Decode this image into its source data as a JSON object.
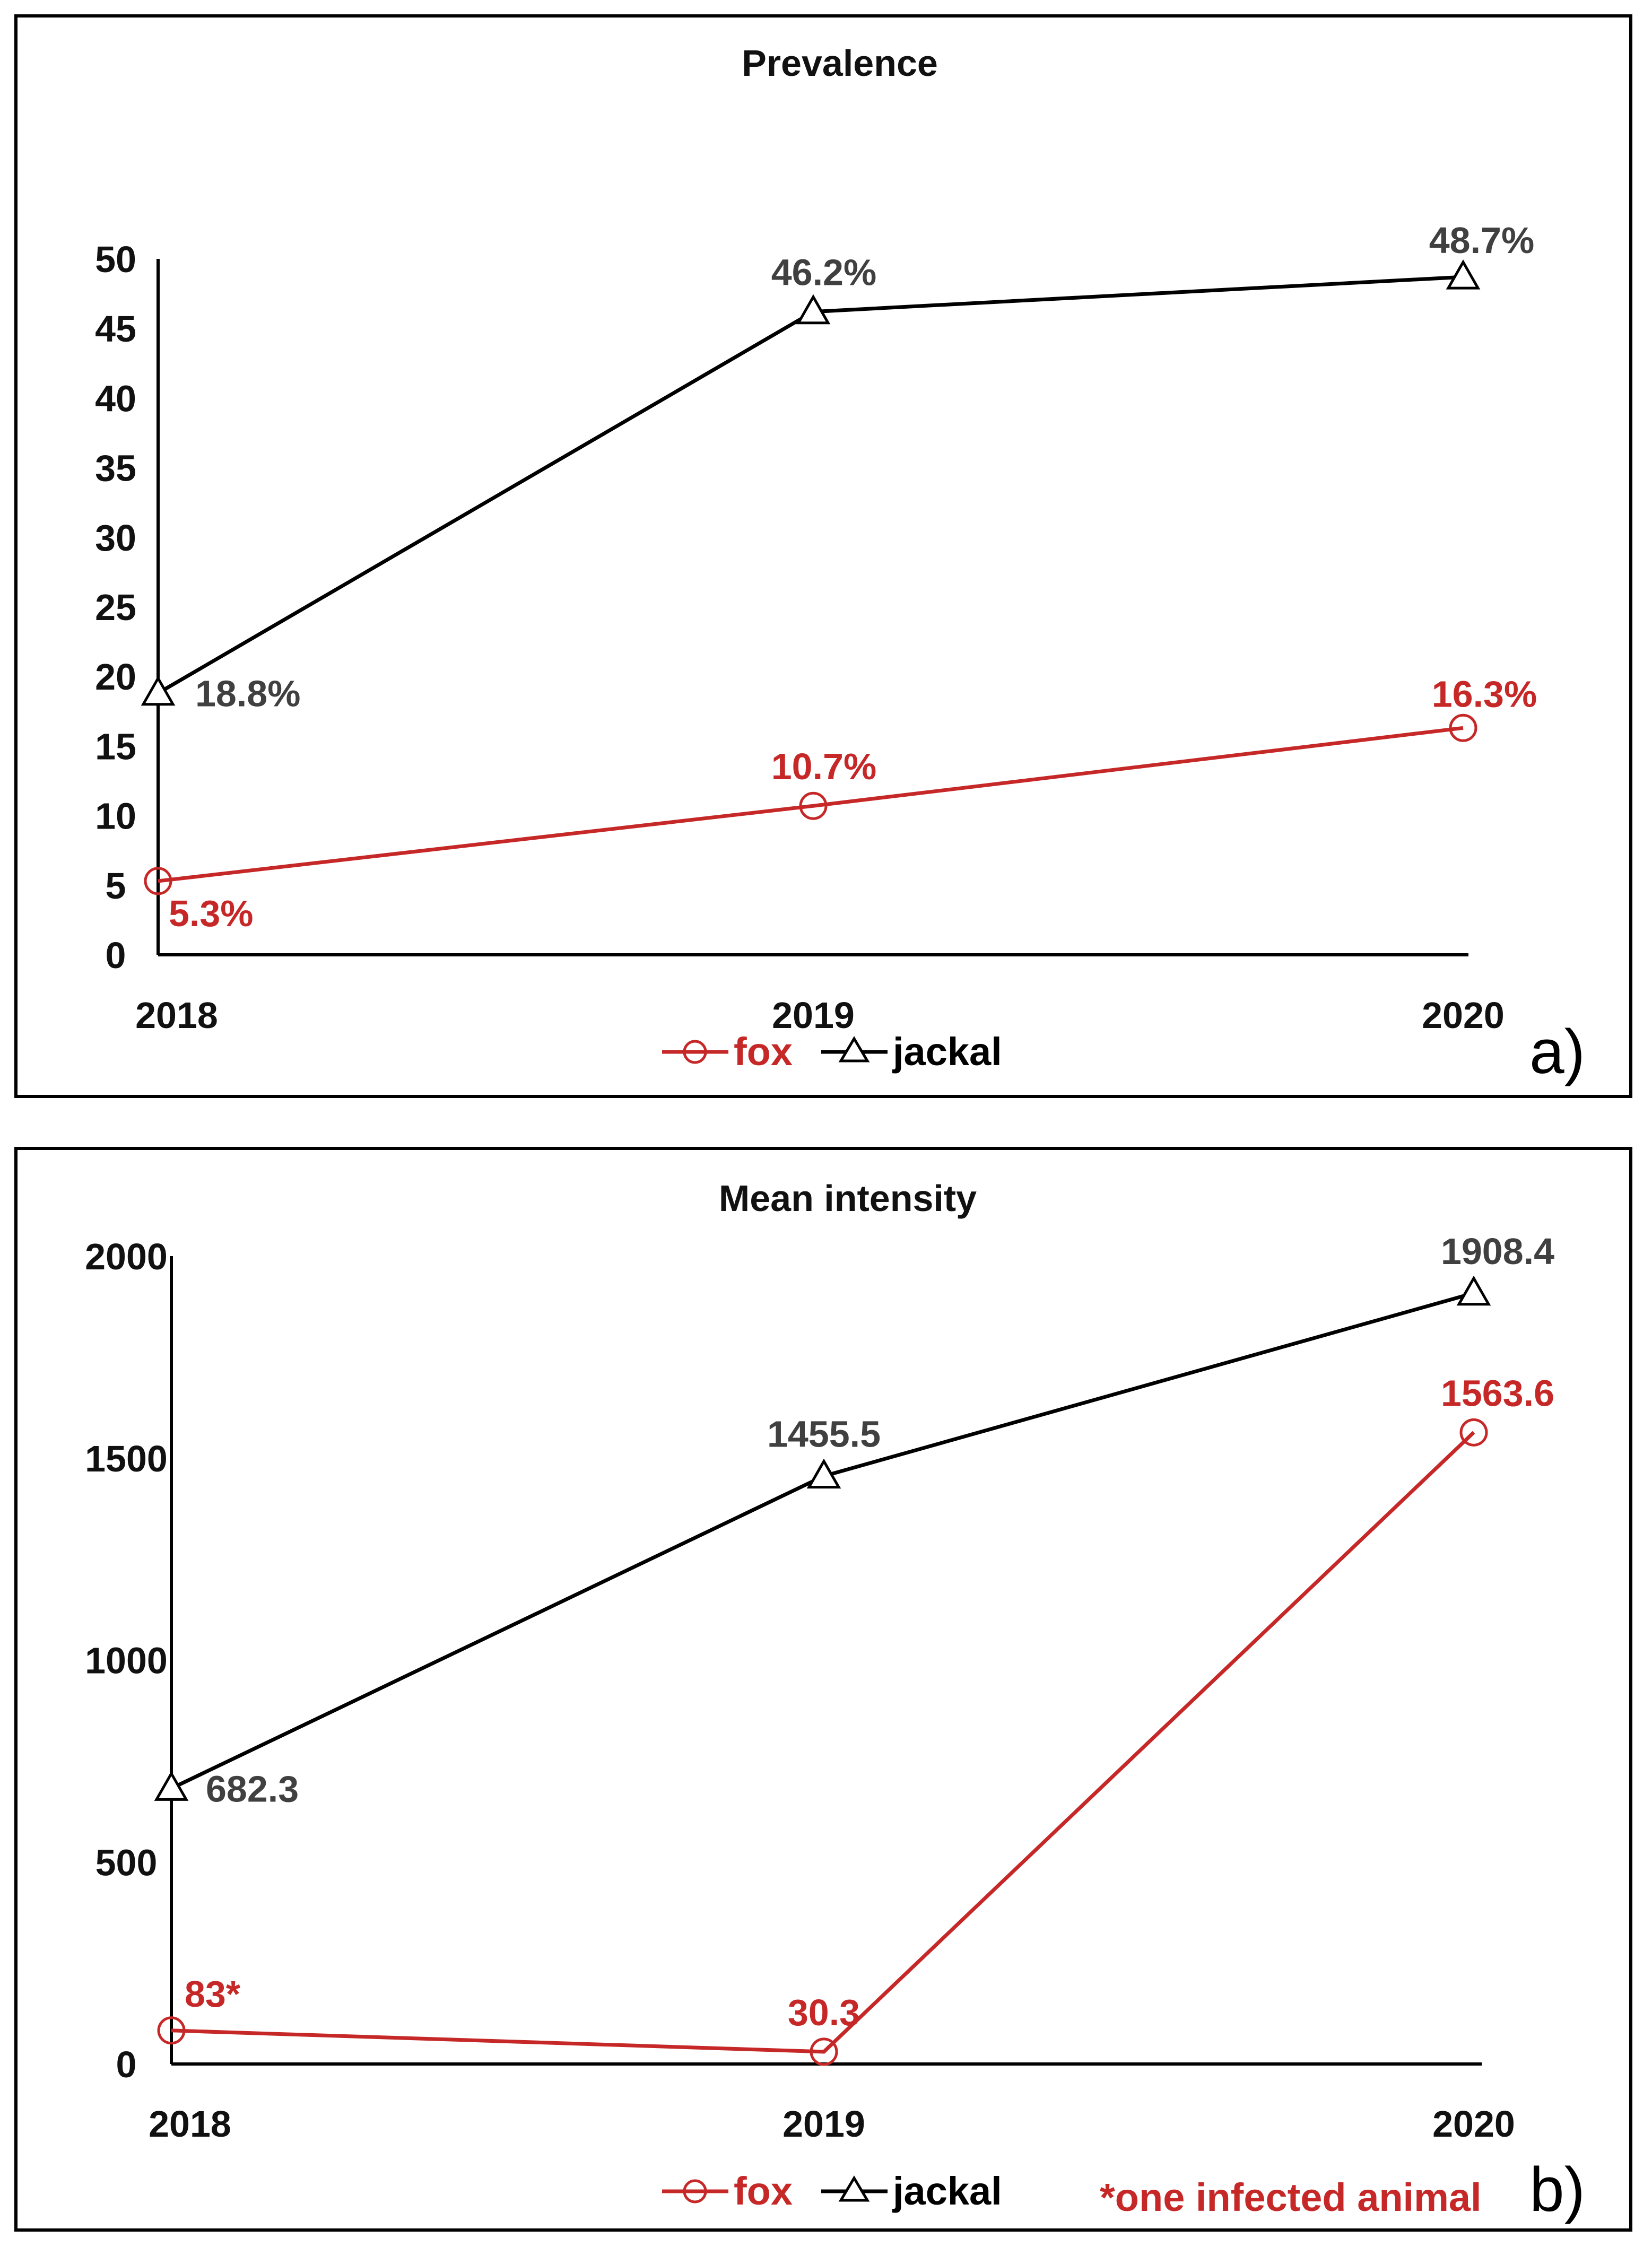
{
  "chart_data": [
    {
      "type": "line",
      "title": "Prevalence",
      "panel_label": "a)",
      "categories": [
        "2018",
        "2019",
        "2020"
      ],
      "ylim": [
        0,
        50
      ],
      "yticks": [
        "0",
        "5",
        "10",
        "15",
        "20",
        "25",
        "30",
        "35",
        "40",
        "45",
        "50"
      ],
      "series": [
        {
          "name": "fox",
          "color": "#c62828",
          "marker": "circle",
          "values": [
            5.3,
            10.7,
            16.3
          ],
          "labels": [
            "5.3%",
            "10.7%",
            "16.3%"
          ]
        },
        {
          "name": "jackal",
          "color": "#000000",
          "label_color": "#404040",
          "marker": "triangle",
          "values": [
            18.8,
            46.2,
            48.7
          ],
          "labels": [
            "18.8%",
            "46.2%",
            "48.7%"
          ]
        }
      ],
      "legend": {
        "fox": "fox",
        "jackal": "jackal"
      }
    },
    {
      "type": "line",
      "title": "Mean intensity",
      "panel_label": "b)",
      "categories": [
        "2018",
        "2019",
        "2020"
      ],
      "ylim": [
        0,
        2000
      ],
      "yticks": [
        "0",
        "500",
        "1000",
        "1500",
        "2000"
      ],
      "series": [
        {
          "name": "fox",
          "color": "#c62828",
          "marker": "circle",
          "values": [
            83,
            30.3,
            1563.6
          ],
          "labels": [
            "83*",
            "30.3",
            "1563.6"
          ]
        },
        {
          "name": "jackal",
          "color": "#000000",
          "label_color": "#404040",
          "marker": "triangle",
          "values": [
            682.3,
            1455.5,
            1908.4
          ],
          "labels": [
            "682.3",
            "1455.5",
            "1908.4"
          ]
        }
      ],
      "legend": {
        "fox": "fox",
        "jackal": "jackal"
      },
      "note": "*one infected animal"
    }
  ]
}
